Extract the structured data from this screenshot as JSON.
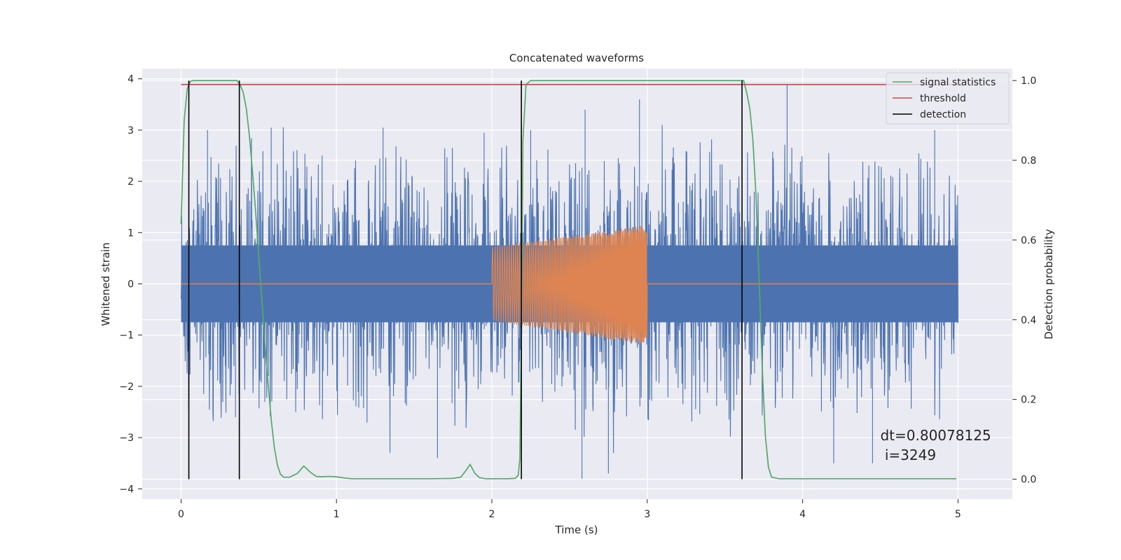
{
  "chart_data": {
    "type": "line",
    "title": "Concatenated waveforms",
    "xlabel": "Time (s)",
    "ylabel": "Whitened strain",
    "y2label": "Detection probability",
    "xlim": [
      -0.25,
      5.35
    ],
    "ylim": [
      -4.2,
      4.2
    ],
    "y2lim": [
      -0.05,
      1.03
    ],
    "xticks": [
      0,
      1,
      2,
      3,
      4,
      5
    ],
    "xtick_labels": [
      "0",
      "1",
      "2",
      "3",
      "4",
      "5"
    ],
    "yticks": [
      4,
      3,
      2,
      1,
      0,
      -1,
      -2,
      -3,
      -4
    ],
    "ytick_labels": [
      "4",
      "3",
      "2",
      "1",
      "0",
      "−1",
      "−2",
      "−3",
      "−4"
    ],
    "y2ticks": [
      1.0,
      0.8,
      0.6,
      0.4,
      0.2,
      0.0
    ],
    "y2tick_labels": [
      "1.0",
      "0.8",
      "0.6",
      "0.4",
      "0.2",
      "0.0"
    ],
    "grid": true,
    "legend_position": "upper right",
    "noise": {
      "x_range": [
        0,
        5
      ],
      "color": "#4c72b0",
      "core_amplitude": 0.75,
      "peaks": [
        {
          "x": 0.17,
          "y": 3.0
        },
        {
          "x": 0.58,
          "y": 3.05
        },
        {
          "x": 1.3,
          "y": 3.05
        },
        {
          "x": 1.95,
          "y": 2.95
        },
        {
          "x": 2.25,
          "y": 3.0
        },
        {
          "x": 2.6,
          "y": 3.4
        },
        {
          "x": 2.95,
          "y": 3.6
        },
        {
          "x": 3.9,
          "y": 3.9
        },
        {
          "x": 4.85,
          "y": 3.0
        },
        {
          "x": 1.65,
          "y": -3.4
        },
        {
          "x": 2.58,
          "y": -3.8
        },
        {
          "x": 2.75,
          "y": -3.7
        },
        {
          "x": 4.2,
          "y": -3.5
        },
        {
          "x": 4.45,
          "y": -3.5
        },
        {
          "x": 0.35,
          "y": -2.6
        }
      ]
    },
    "signal_chirp": {
      "x_range": [
        2.0,
        3.0
      ],
      "color": "#dd8452",
      "envelope_start": 0.72,
      "envelope_end": 1.17,
      "mean_offset_start": 0.0,
      "mean_offset_end": -0.02
    },
    "series": [
      {
        "name": "signal statistics",
        "color": "#55a868",
        "axis": "right",
        "x": [
          0.0,
          0.02,
          0.04,
          0.06,
          0.08,
          0.1,
          0.15,
          0.2,
          0.3,
          0.36,
          0.38,
          0.4,
          0.42,
          0.44,
          0.46,
          0.48,
          0.5,
          0.52,
          0.54,
          0.56,
          0.58,
          0.6,
          0.62,
          0.64,
          0.66,
          0.7,
          0.75,
          0.79,
          0.83,
          0.87,
          0.9,
          0.95,
          1.0,
          1.05,
          1.1,
          1.2,
          1.4,
          1.6,
          1.75,
          1.8,
          1.83,
          1.86,
          1.89,
          1.92,
          1.96,
          2.1,
          2.15,
          2.17,
          2.18,
          2.19,
          2.2,
          2.22,
          2.25,
          2.3,
          2.5,
          3.0,
          3.5,
          3.62,
          3.64,
          3.66,
          3.68,
          3.7,
          3.72,
          3.74,
          3.76,
          3.78,
          3.8,
          3.85,
          4.0,
          4.5,
          4.99
        ],
        "y": [
          0.64,
          0.9,
          0.98,
          0.998,
          1.0,
          1.0,
          1.0,
          1.0,
          1.0,
          1.0,
          0.99,
          0.97,
          0.93,
          0.86,
          0.77,
          0.67,
          0.56,
          0.45,
          0.34,
          0.24,
          0.15,
          0.08,
          0.035,
          0.012,
          0.005,
          0.005,
          0.015,
          0.033,
          0.018,
          0.007,
          0.006,
          0.007,
          0.006,
          0.003,
          0.001,
          0.001,
          0.001,
          0.001,
          0.002,
          0.005,
          0.02,
          0.037,
          0.015,
          0.004,
          0.001,
          0.001,
          0.002,
          0.01,
          0.05,
          0.35,
          0.85,
          0.99,
          1.0,
          1.0,
          1.0,
          1.0,
          1.0,
          1.0,
          0.97,
          0.93,
          0.85,
          0.71,
          0.5,
          0.28,
          0.11,
          0.03,
          0.005,
          0.001,
          0.001,
          0.001,
          0.001
        ]
      },
      {
        "name": "threshold",
        "color": "#c44e52",
        "axis": "right",
        "x": [
          0.0,
          5.0
        ],
        "y": [
          0.99,
          0.99
        ]
      },
      {
        "name": "detection",
        "color": "#000000",
        "axis": "right",
        "type": "vlines",
        "x": [
          0.05,
          0.375,
          2.19,
          3.61
        ],
        "y_range": [
          0.0,
          1.0
        ]
      }
    ],
    "annotation": {
      "line1": "dt=0.80078125",
      "line2": " i=3249",
      "x": 4.5,
      "y": -3.05
    }
  }
}
